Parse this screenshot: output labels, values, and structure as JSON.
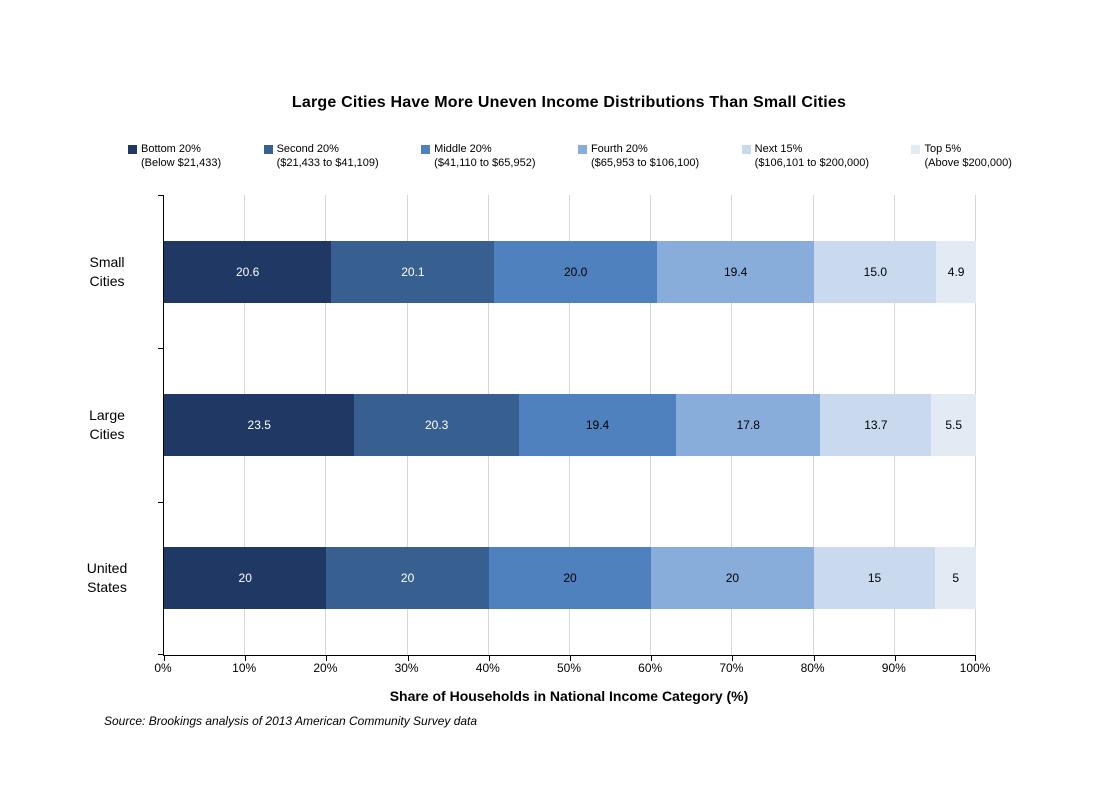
{
  "title": "Large Cities Have More Uneven Income Distributions Than Small Cities",
  "chart_data": {
    "type": "bar",
    "orientation": "horizontal",
    "stacked": true,
    "categories": [
      "Small Cities",
      "Large Cities",
      "United States"
    ],
    "series": [
      {
        "name": "Bottom 20%",
        "range": "(Below $21,433)",
        "color": "#1F3864",
        "label_color": "#FFFFFF",
        "values": [
          20.6,
          23.5,
          20
        ],
        "labels": [
          "20.6",
          "23.5",
          "20"
        ]
      },
      {
        "name": "Second 20%",
        "range": "($21,433 to $41,109)",
        "color": "#376091",
        "label_color": "#FFFFFF",
        "values": [
          20.1,
          20.3,
          20
        ],
        "labels": [
          "20.1",
          "20.3",
          "20"
        ]
      },
      {
        "name": "Middle 20%",
        "range": "($41,110 to $65,952)",
        "color": "#4E81BE",
        "label_color": "#000000",
        "values": [
          20.0,
          19.4,
          20
        ],
        "labels": [
          "20.0",
          "19.4",
          "20"
        ]
      },
      {
        "name": "Fourth 20%",
        "range": "($65,953 to $106,100)",
        "color": "#89ADDB",
        "label_color": "#000000",
        "values": [
          19.4,
          17.8,
          20
        ],
        "labels": [
          "19.4",
          "17.8",
          "20"
        ]
      },
      {
        "name": "Next 15%",
        "range": "($106,101 to $200,000)",
        "color": "#C9D9EE",
        "label_color": "#000000",
        "values": [
          15.0,
          13.7,
          15
        ],
        "labels": [
          "15.0",
          "13.7",
          "15"
        ]
      },
      {
        "name": "Top 5%",
        "range": "(Above $200,000)",
        "color": "#E2EAF4",
        "label_color": "#000000",
        "values": [
          4.9,
          5.5,
          5
        ],
        "labels": [
          "4.9",
          "5.5",
          "5"
        ]
      }
    ],
    "xlabel": "Share of Households in National Income Category (%)",
    "xlim": [
      0,
      100
    ],
    "x_ticks": [
      "0%",
      "10%",
      "20%",
      "30%",
      "40%",
      "50%",
      "60%",
      "70%",
      "80%",
      "90%",
      "100%"
    ],
    "grid": true,
    "legend_position": "top"
  },
  "source": "Source: Brookings analysis of 2013 American Community Survey data"
}
